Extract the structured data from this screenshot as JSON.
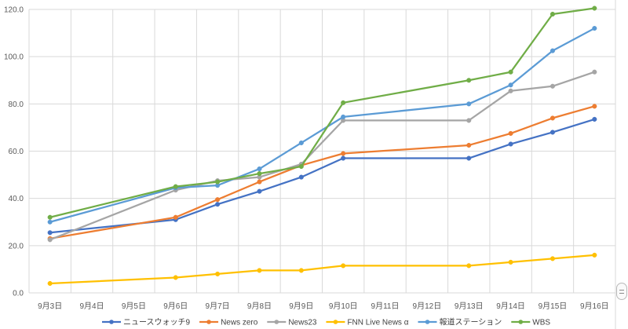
{
  "chart_data": {
    "type": "line",
    "categories": [
      "9月3日",
      "9月4日",
      "9月5日",
      "9月6日",
      "9月7日",
      "9月8日",
      "9月9日",
      "9月10日",
      "9月11日",
      "9月12日",
      "9月13日",
      "9月14日",
      "9月15日",
      "9月16日"
    ],
    "ylim": [
      0,
      120
    ],
    "ytick_labels": [
      "0.0",
      "20.0",
      "40.0",
      "60.0",
      "80.0",
      "100.0",
      "120.0"
    ],
    "grid": true,
    "legend_position": "bottom",
    "series": [
      {
        "name": "ニュースウォッチ9",
        "color": "#4472c4",
        "values": [
          25.5,
          null,
          null,
          31.0,
          37.5,
          43.0,
          49.0,
          57.0,
          null,
          null,
          57.0,
          63.0,
          68.0,
          73.5
        ]
      },
      {
        "name": "News zero",
        "color": "#ed7d31",
        "values": [
          23.0,
          null,
          null,
          32.0,
          39.5,
          47.0,
          54.0,
          59.0,
          null,
          null,
          62.5,
          67.5,
          74.0,
          79.0
        ]
      },
      {
        "name": "News23",
        "color": "#a5a5a5",
        "values": [
          22.5,
          null,
          null,
          43.5,
          47.5,
          49.0,
          54.5,
          73.0,
          null,
          null,
          73.0,
          85.5,
          87.5,
          93.5
        ]
      },
      {
        "name": "FNN Live News α",
        "color": "#ffc000",
        "values": [
          4.0,
          null,
          null,
          6.5,
          8.0,
          9.5,
          9.5,
          11.5,
          null,
          null,
          11.5,
          13.0,
          14.5,
          16.0
        ]
      },
      {
        "name": "報道ステーション",
        "color": "#5b9bd5",
        "values": [
          30.0,
          null,
          null,
          44.5,
          45.5,
          52.5,
          63.5,
          74.5,
          null,
          null,
          80.0,
          88.0,
          102.5,
          112.0
        ]
      },
      {
        "name": "WBS",
        "color": "#70ad47",
        "values": [
          32.0,
          null,
          null,
          45.0,
          47.0,
          50.5,
          53.5,
          80.5,
          null,
          null,
          90.0,
          93.5,
          118.0,
          120.5
        ]
      }
    ]
  }
}
